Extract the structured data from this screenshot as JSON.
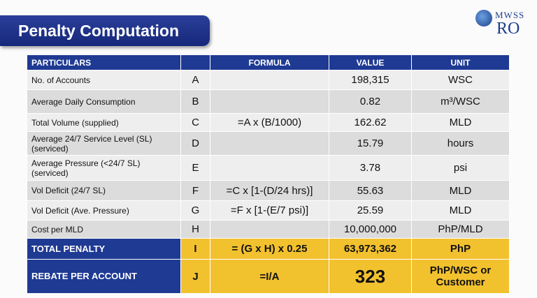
{
  "header": {
    "title": "Penalty Computation",
    "logo_top": "MWSS",
    "logo_bottom": "RO"
  },
  "table": {
    "columns": [
      "PARTICULARS",
      "",
      "FORMULA",
      "VALUE",
      "UNIT"
    ],
    "rows": [
      [
        "No. of Accounts",
        "A",
        "",
        "198,315",
        "WSC"
      ],
      [
        "Average Daily Consumption",
        "B",
        "",
        "0.82",
        "m³/WSC"
      ],
      [
        "Total Volume (supplied)",
        "C",
        "=A x (B/1000)",
        "162.62",
        "MLD"
      ],
      [
        "Average 24/7 Service Level (SL) (serviced)",
        "D",
        "",
        "15.79",
        "hours"
      ],
      [
        "Average Pressure (<24/7 SL) (serviced)",
        "E",
        "",
        "3.78",
        "psi"
      ],
      [
        "Vol Deficit (24/7 SL)",
        "F",
        "=C x [1-(D/24 hrs)]",
        "55.63",
        "MLD"
      ],
      [
        "Vol Deficit (Ave. Pressure)",
        "G",
        "=F x [1-(E/7 psi)]",
        "25.59",
        "MLD"
      ],
      [
        "Cost per MLD",
        "H",
        "",
        "10,000,000",
        "PhP/MLD"
      ],
      [
        "TOTAL PENALTY",
        "I",
        "= (G x H) x 0.25",
        "63,973,362",
        "PhP"
      ],
      [
        "REBATE PER ACCOUNT",
        "J",
        "=I/A",
        "323",
        "PhP/WSC or Customer"
      ]
    ]
  }
}
